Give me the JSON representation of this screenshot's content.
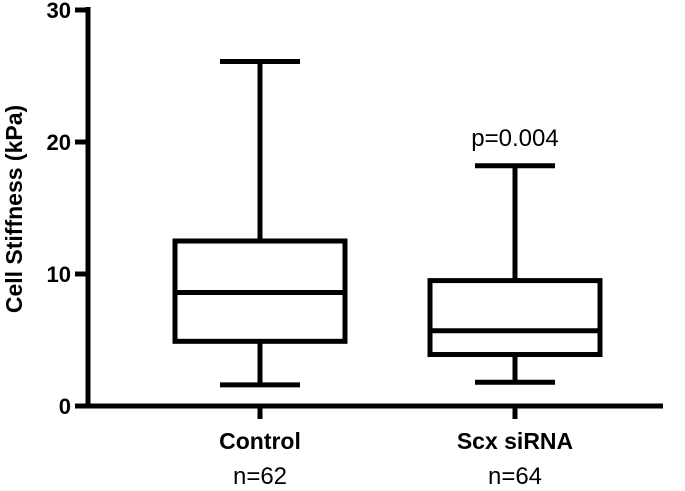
{
  "chart_data": {
    "type": "box",
    "title": "",
    "xlabel": "",
    "ylabel": "Cell Stiffness (kPa)",
    "ylim": [
      0,
      30
    ],
    "yticks": [
      0,
      10,
      20,
      30
    ],
    "grid": false,
    "categories": [
      "Control",
      "Scx siRNA"
    ],
    "sample_labels": [
      "n=62",
      "n=64"
    ],
    "boxes": [
      {
        "category": "Control",
        "min": 1.6,
        "q1": 4.9,
        "median": 8.6,
        "q3": 12.5,
        "max": 26.1
      },
      {
        "category": "Scx siRNA",
        "min": 1.8,
        "q1": 3.9,
        "median": 5.7,
        "q3": 9.5,
        "max": 18.2
      }
    ],
    "annotations": [
      {
        "text": "p=0.004",
        "category": "Scx siRNA",
        "anchor": "above-max"
      }
    ]
  }
}
